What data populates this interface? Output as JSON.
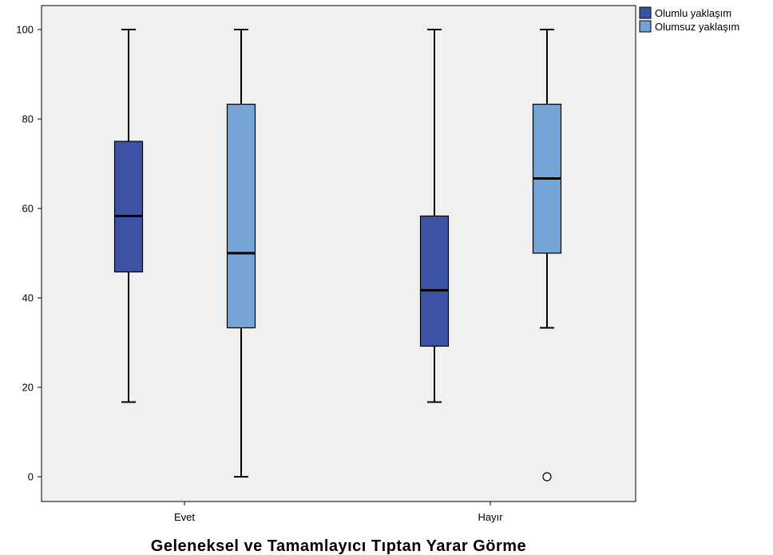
{
  "chart_data": {
    "type": "box",
    "xlabel": "Geleneksel ve Tamamlayıcı Tıptan Yarar Görme",
    "ylabel": "",
    "ylim": [
      -5.5,
      105
    ],
    "yticks": [
      0,
      20,
      40,
      60,
      80,
      100
    ],
    "categories": [
      "Evet",
      "Hayır"
    ],
    "legend_position": "top-right, outside plot",
    "grid": false,
    "plot_background": "#f0f0f0",
    "series": [
      {
        "name": "Olumlu yaklaşım",
        "color": "#3a53a4",
        "boxes": [
          {
            "category": "Evet",
            "min": 16.7,
            "q1": 45.8,
            "median": 58.3,
            "q3": 75.0,
            "max": 100,
            "outliers": []
          },
          {
            "category": "Hayır",
            "min": 16.7,
            "q1": 29.2,
            "median": 41.7,
            "q3": 58.3,
            "max": 100,
            "outliers": []
          }
        ]
      },
      {
        "name": "Olumsuz yaklaşım",
        "color": "#74a5d6",
        "boxes": [
          {
            "category": "Evet",
            "min": 0,
            "q1": 33.3,
            "median": 50.0,
            "q3": 83.3,
            "max": 100,
            "outliers": []
          },
          {
            "category": "Hayır",
            "min": 33.3,
            "q1": 50.0,
            "median": 66.7,
            "q3": 83.3,
            "max": 100,
            "outliers": [
              0
            ]
          }
        ]
      }
    ]
  }
}
